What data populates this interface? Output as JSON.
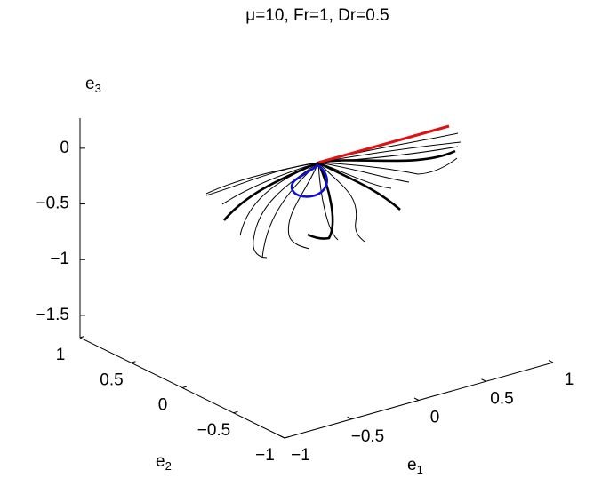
{
  "chart_data": {
    "type": "line3d",
    "title": "μ=10, Fr=1, Dr=0.5",
    "zlabel": {
      "base": "e",
      "sub": "3"
    },
    "ylabel": {
      "base": "e",
      "sub": "2"
    },
    "xlabel": {
      "base": "e",
      "sub": "1"
    },
    "zlim": [
      -1.7,
      0.27
    ],
    "zticks": [
      {
        "value": 0,
        "label": "0"
      },
      {
        "value": -0.5,
        "label": "−0.5"
      },
      {
        "value": -1,
        "label": "−1"
      },
      {
        "value": -1.5,
        "label": "−1.5"
      }
    ],
    "ylim": [
      1,
      -1
    ],
    "yticks": [
      {
        "value": 1,
        "label": "1"
      },
      {
        "value": 0.5,
        "label": "0.5"
      },
      {
        "value": 0,
        "label": "0"
      },
      {
        "value": -0.5,
        "label": "−0.5"
      },
      {
        "value": -1,
        "label": "−1"
      }
    ],
    "xlim": [
      -1,
      1
    ],
    "xticks": [
      {
        "value": -1,
        "label": "−1"
      },
      {
        "value": -0.5,
        "label": "−0.5"
      },
      {
        "value": 0,
        "label": "0"
      },
      {
        "value": 0.5,
        "label": "0.5"
      },
      {
        "value": 1,
        "label": "1"
      }
    ]
  }
}
